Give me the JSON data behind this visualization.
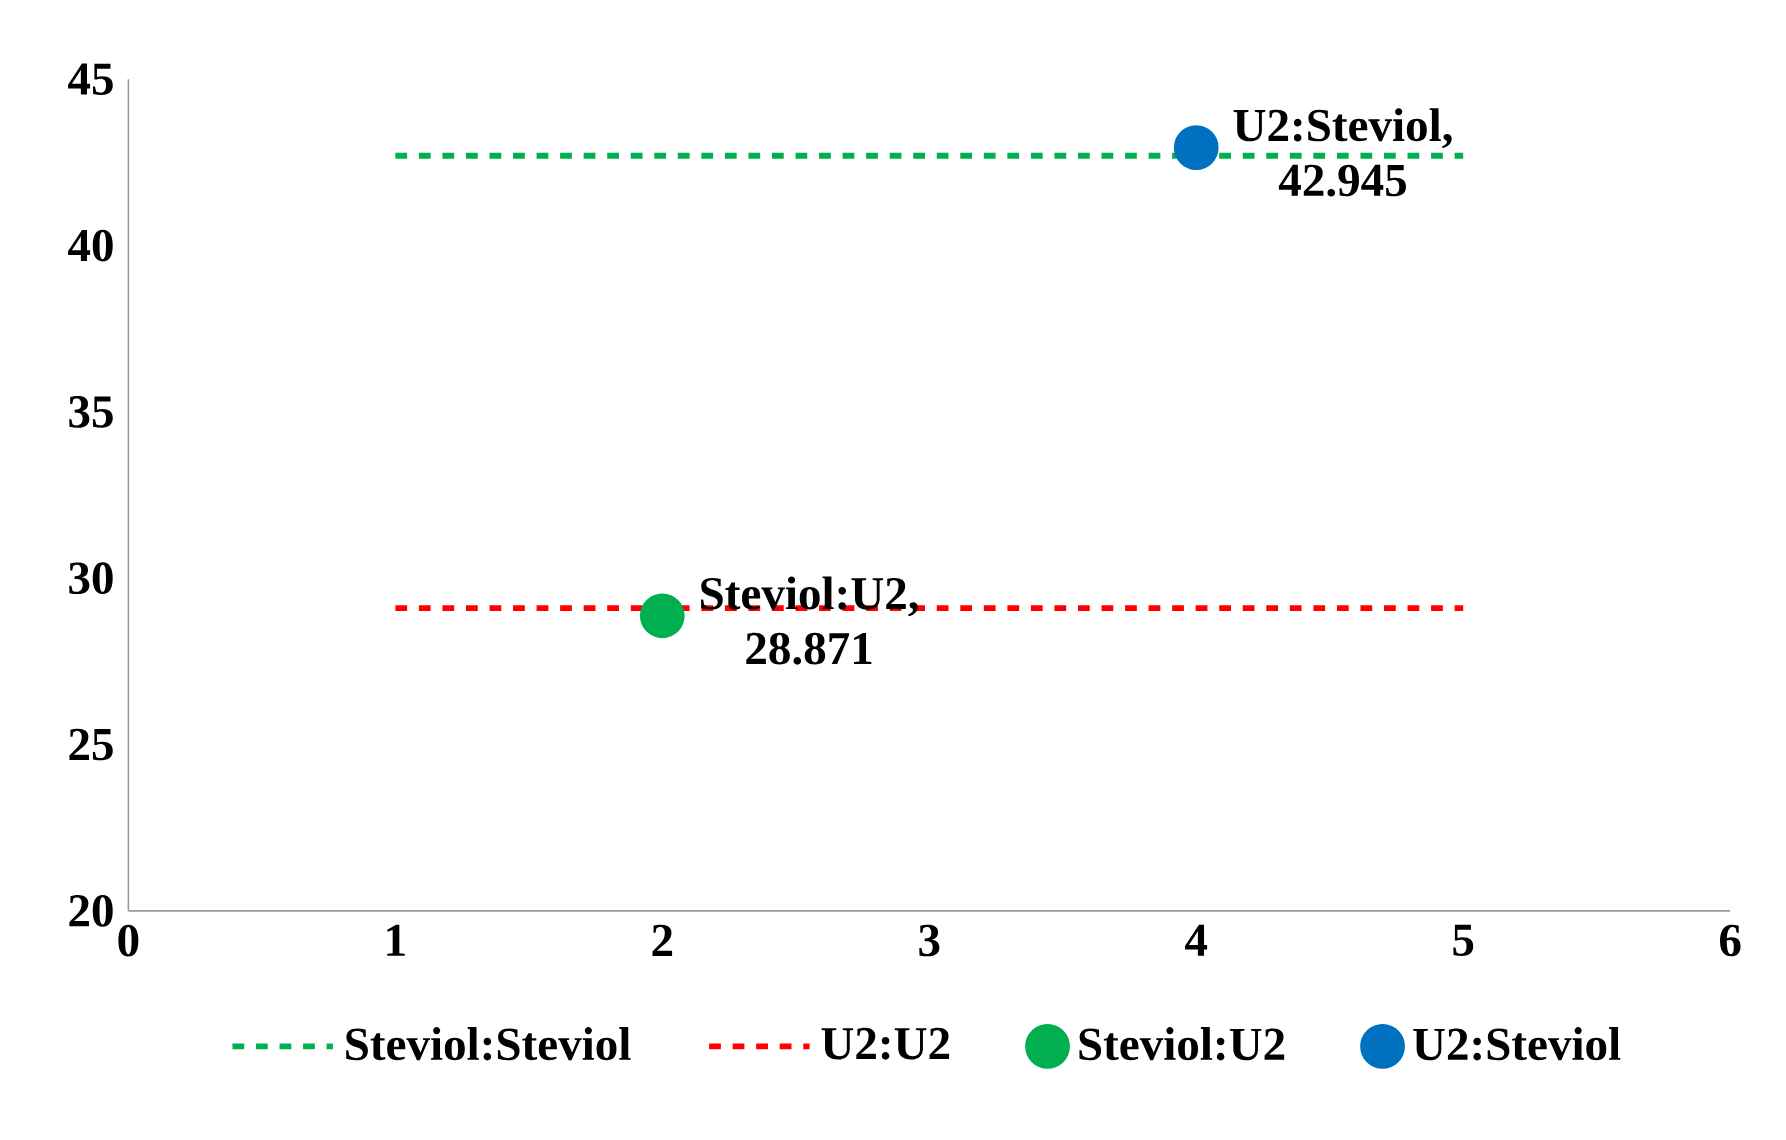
{
  "chart_data": {
    "type": "line",
    "xlim": [
      0,
      6
    ],
    "xticks": [
      0,
      1,
      2,
      3,
      4,
      5,
      6
    ],
    "ylim": [
      20,
      45
    ],
    "yticks": [
      20,
      25,
      30,
      35,
      40,
      45
    ],
    "grid": false,
    "legend": "bottom",
    "series": [
      {
        "name": "Steviol:Steviol",
        "color": "#00b050",
        "line_style": "dashed",
        "marker": "none",
        "x": [
          1,
          5
        ],
        "values": [
          42.7,
          42.7
        ]
      },
      {
        "name": "U2:U2",
        "color": "#ff0000",
        "line_style": "dashed",
        "marker": "none",
        "x": [
          1,
          5
        ],
        "values": [
          29.1,
          29.1
        ]
      },
      {
        "name": "Steviol:U2",
        "type": "scatter",
        "color": "#00b050",
        "marker": "circle",
        "x": [
          2
        ],
        "values": [
          28.871
        ]
      },
      {
        "name": "U2:Steviol",
        "type": "scatter",
        "color": "#0070c0",
        "marker": "circle",
        "x": [
          4
        ],
        "values": [
          42.945
        ]
      }
    ],
    "annotations": [
      {
        "text": "Steviol:U2, 28.871",
        "x": 2,
        "y": 28.871
      },
      {
        "text": "U2:Steviol, 42.945",
        "x": 4,
        "y": 42.945
      }
    ]
  }
}
